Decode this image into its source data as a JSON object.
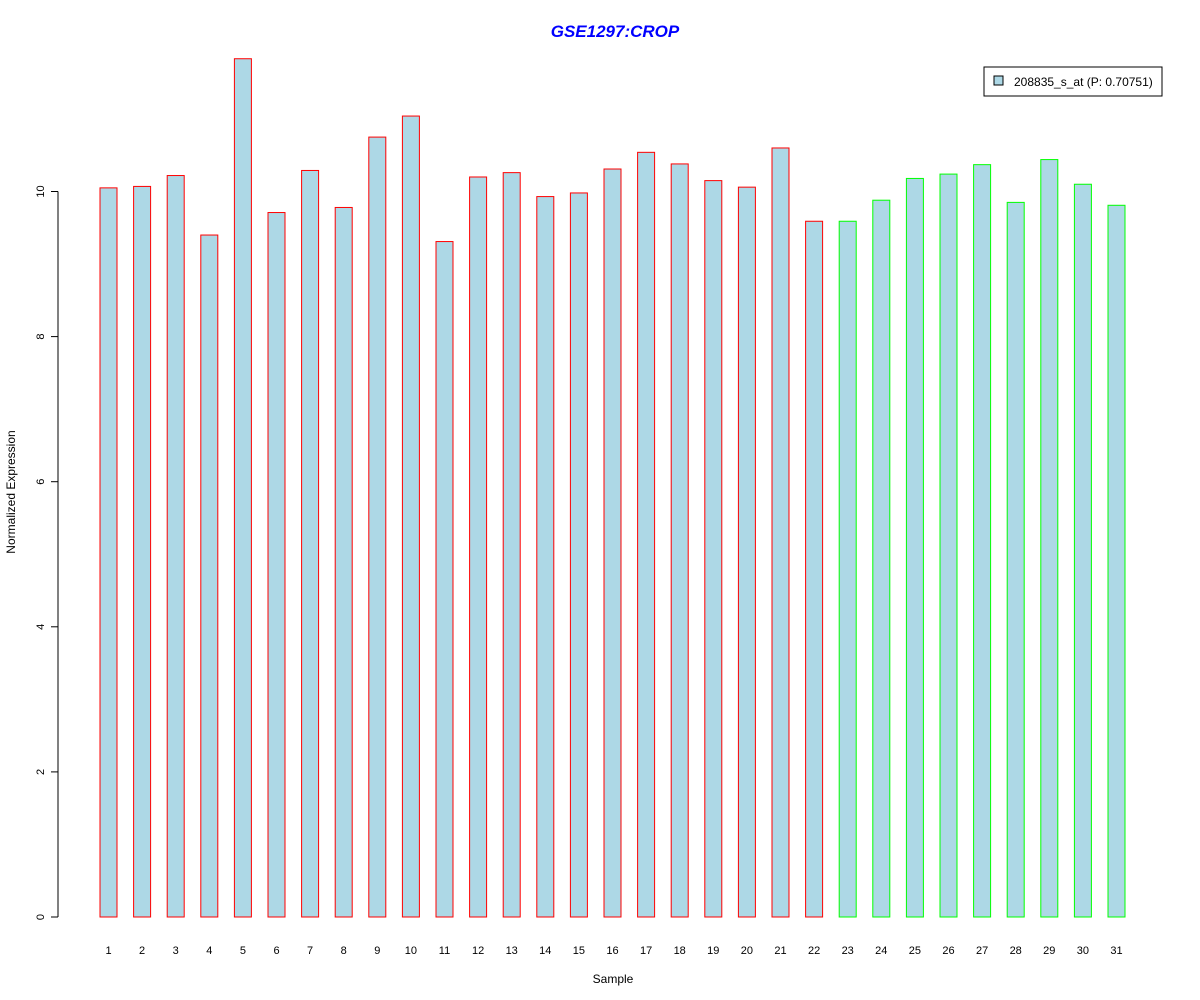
{
  "chart_data": {
    "type": "bar",
    "title": "GSE1297:CROP",
    "xlabel": "Sample",
    "ylabel": "Normalized Expression",
    "categories": [
      "1",
      "2",
      "3",
      "4",
      "5",
      "6",
      "7",
      "8",
      "9",
      "10",
      "11",
      "12",
      "13",
      "14",
      "15",
      "16",
      "17",
      "18",
      "19",
      "20",
      "21",
      "22",
      "23",
      "24",
      "25",
      "26",
      "27",
      "28",
      "29",
      "30",
      "31"
    ],
    "series": [
      {
        "name": "208835_s_at (P: 0.70751)",
        "values": [
          10.05,
          10.07,
          10.22,
          9.4,
          11.83,
          9.71,
          10.29,
          9.78,
          10.75,
          11.04,
          9.31,
          10.2,
          10.26,
          9.93,
          9.98,
          10.31,
          10.54,
          10.38,
          10.15,
          10.06,
          10.6,
          9.59,
          9.59,
          9.88,
          10.18,
          10.24,
          10.37,
          9.85,
          10.44,
          10.1,
          9.81
        ]
      }
    ],
    "group_edge_colors": [
      "#ff0000",
      "#ff0000",
      "#ff0000",
      "#ff0000",
      "#ff0000",
      "#ff0000",
      "#ff0000",
      "#ff0000",
      "#ff0000",
      "#ff0000",
      "#ff0000",
      "#ff0000",
      "#ff0000",
      "#ff0000",
      "#ff0000",
      "#ff0000",
      "#ff0000",
      "#ff0000",
      "#ff0000",
      "#ff0000",
      "#ff0000",
      "#ff0000",
      "#00ff00",
      "#00ff00",
      "#00ff00",
      "#00ff00",
      "#00ff00",
      "#00ff00",
      "#00ff00",
      "#00ff00",
      "#00ff00"
    ],
    "yticks": [
      0,
      2,
      4,
      6,
      8,
      10
    ],
    "ylim": [
      0,
      11.83
    ],
    "grid": false,
    "legend_position": "top-right",
    "colors": {
      "bar_fill": "#add8e6",
      "title": "#0000ff",
      "axis": "#000000"
    }
  }
}
